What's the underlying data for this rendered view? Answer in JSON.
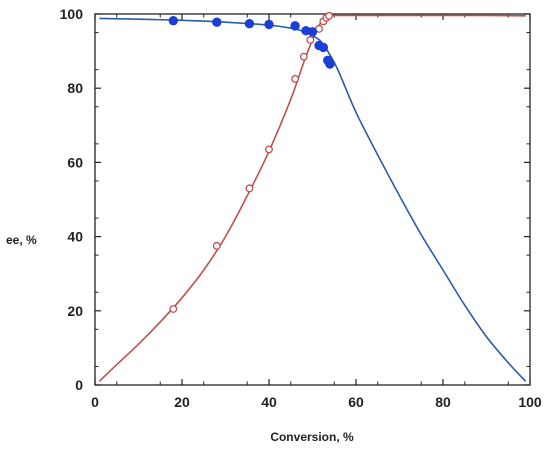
{
  "chart_data": {
    "type": "line",
    "xlabel": "Conversion,  %",
    "ylabel": "ee, %",
    "xlim": [
      0,
      100
    ],
    "ylim": [
      0,
      100
    ],
    "xticks": [
      0,
      20,
      40,
      60,
      80,
      100
    ],
    "yticks": [
      0,
      20,
      40,
      60,
      80,
      100
    ],
    "grid": false,
    "series": [
      {
        "color": "#c0504d",
        "kind": "line",
        "x": [
          1,
          5,
          10,
          15,
          20,
          25,
          30,
          35,
          40,
          45,
          48,
          50,
          52,
          53,
          54,
          60,
          70,
          80,
          90,
          99
        ],
        "y": [
          1,
          5.5,
          11,
          17,
          23.5,
          31,
          40,
          51,
          63,
          77,
          87,
          93,
          98,
          99.3,
          99.6,
          99.6,
          99.6,
          99.6,
          99.6,
          99.5
        ]
      },
      {
        "color": "#2a5ba8",
        "kind": "line",
        "x": [
          1,
          10,
          20,
          30,
          40,
          45,
          48,
          50,
          52,
          54,
          56,
          60,
          65,
          70,
          75,
          80,
          85,
          90,
          95,
          99
        ],
        "y": [
          98.8,
          98.6,
          98.3,
          97.8,
          97,
          96.2,
          95.3,
          94.2,
          92.5,
          89,
          84.5,
          73.5,
          62,
          51,
          40.5,
          31,
          21.5,
          13,
          6,
          1
        ]
      },
      {
        "color": "#c0504d",
        "kind": "open-markers",
        "x": [
          18,
          28,
          35.5,
          40,
          46,
          48,
          49.5,
          51.5,
          52.5,
          53.2,
          53.8
        ],
        "y": [
          20.5,
          37.5,
          53,
          63.5,
          82.5,
          88.5,
          93,
          96,
          98,
          99,
          99.5
        ]
      },
      {
        "color": "#1a3fd6",
        "kind": "filled-markers",
        "x": [
          18,
          28,
          35.5,
          40,
          46,
          48.5,
          50,
          51.5,
          52.5,
          53.5,
          54
        ],
        "y": [
          98.2,
          97.8,
          97.4,
          97.2,
          96.8,
          95.5,
          95.2,
          91.5,
          91,
          87.5,
          86.5
        ]
      }
    ]
  }
}
